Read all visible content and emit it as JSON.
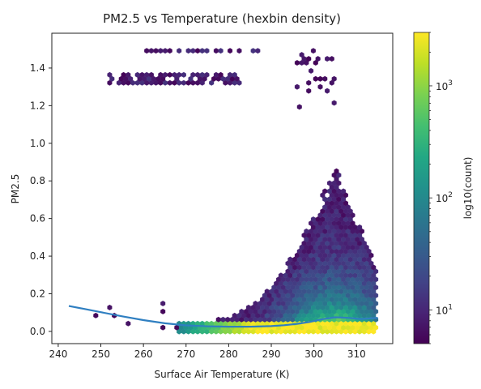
{
  "chart_data": {
    "type": "hexbin",
    "title": "PM2.5 vs Temperature (hexbin density)",
    "xlabel": "Surface Air Temperature (K)",
    "ylabel": "PM2.5",
    "xlim": [
      238.5,
      318.5
    ],
    "ylim": [
      -0.065,
      1.585
    ],
    "x_ticks": [
      240,
      250,
      260,
      270,
      280,
      290,
      300,
      310
    ],
    "y_ticks": [
      0.0,
      0.2,
      0.4,
      0.6,
      0.8,
      1.0,
      1.2,
      1.4
    ],
    "grid": false,
    "colorbar": {
      "label": "log10(count)",
      "scale": "log",
      "range": [
        5,
        3000
      ],
      "colormap": "viridis",
      "tick_labels": [
        {
          "value": 10,
          "base": "10",
          "exp": "1"
        },
        {
          "value": 100,
          "base": "10",
          "exp": "2"
        },
        {
          "value": 1000,
          "base": "10",
          "exp": "3"
        }
      ]
    },
    "hexbin_regions": [
      {
        "desc": "dense band",
        "x": [
          268,
          315
        ],
        "y": [
          -0.01,
          0.05
        ],
        "peak_log10_count": 3.4
      },
      {
        "desc": "main cloud",
        "x": [
          270,
          315
        ],
        "y": [
          0.0,
          0.9
        ],
        "peak_at_x": 305
      },
      {
        "desc": "upper cluster",
        "x": [
          260,
          287
        ],
        "y": [
          1.48,
          1.5
        ]
      },
      {
        "desc": "upper cluster",
        "x": [
          252,
          283
        ],
        "y": [
          1.32,
          1.37
        ]
      },
      {
        "desc": "high outliers",
        "x": [
          296,
          305
        ],
        "y": [
          1.18,
          1.5
        ]
      },
      {
        "desc": "low-temperature sparse points",
        "x": [
          247,
          268
        ],
        "y": [
          0.0,
          0.16
        ]
      }
    ],
    "series": [
      {
        "type": "line",
        "color": "#2f7fc1",
        "x": [
          242.5,
          246,
          250,
          255,
          260,
          265,
          270,
          275,
          280,
          285,
          290,
          293,
          296,
          299,
          302,
          305,
          308,
          311,
          315
        ],
        "y": [
          0.135,
          0.12,
          0.102,
          0.08,
          0.06,
          0.043,
          0.032,
          0.027,
          0.025,
          0.025,
          0.028,
          0.033,
          0.04,
          0.05,
          0.065,
          0.075,
          0.072,
          0.066,
          0.072
        ]
      }
    ]
  }
}
